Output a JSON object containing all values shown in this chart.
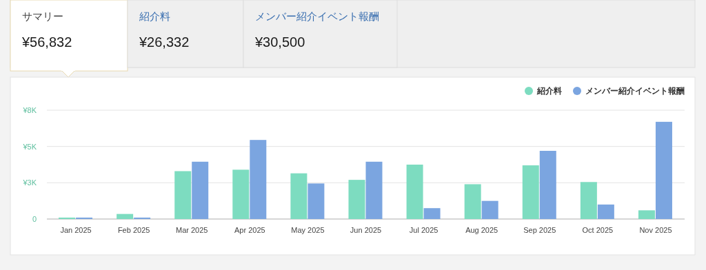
{
  "chart_data": [
    {
      "type": "other",
      "annotations": [
        "サマリー",
        "¥56,832",
        "紹介料",
        "¥26,332",
        "メンバー紹介イベント報酬",
        "¥30,500"
      ]
    },
    {
      "type": "bar",
      "categories": [
        "Jan 2025",
        "Feb 2025",
        "Mar 2025",
        "Apr 2025",
        "May 2025",
        "Jun 2025",
        "Jul 2025",
        "Aug 2025",
        "Sep 2025",
        "Oct 2025",
        "Nov 2025"
      ],
      "series": [
        {
          "name": "紹介料",
          "color": "#7ddcc0",
          "values": [
            100,
            350,
            3300,
            3400,
            3150,
            2700,
            3750,
            2400,
            3700,
            2550,
            600
          ]
        },
        {
          "name": "メンバー紹介イベント報酬",
          "color": "#7ba5e0",
          "values": [
            100,
            100,
            3950,
            5450,
            2450,
            3950,
            750,
            1250,
            4700,
            1000,
            6700
          ]
        }
      ],
      "ylim": [
        0,
        7500
      ],
      "yticks": [
        0,
        {
          "value": 2500,
          "label": "¥3K"
        },
        {
          "value": 5000,
          "label": "¥5K"
        },
        {
          "value": 7500,
          "label": "¥8K"
        }
      ],
      "grid": "y",
      "legend": "top right"
    }
  ]
}
